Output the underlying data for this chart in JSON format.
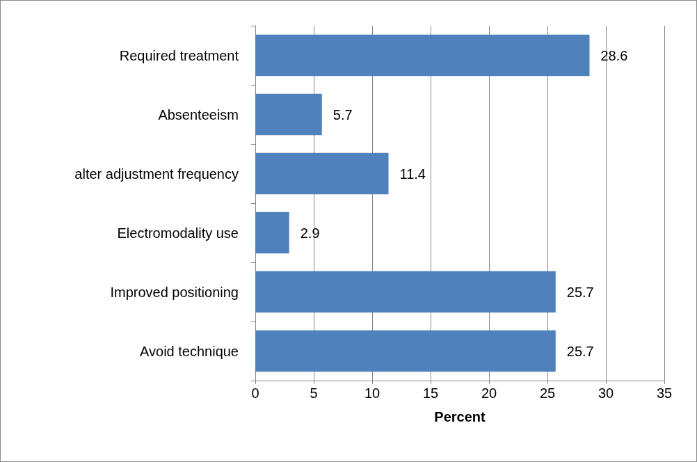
{
  "chart_data": {
    "type": "bar",
    "orientation": "horizontal",
    "xlabel": "Percent",
    "categories": [
      "Required treatment",
      "Absenteeism",
      "alter adjustment frequency",
      "Electromodality use",
      "Improved positioning",
      "Avoid technique"
    ],
    "values": [
      28.6,
      5.7,
      11.4,
      2.9,
      25.7,
      25.7
    ],
    "color": "#4f81bd",
    "xlim": [
      0,
      35
    ],
    "xticks": [
      0,
      5,
      10,
      15,
      20,
      25,
      30,
      35
    ],
    "grid": "x",
    "data_labels": true
  }
}
